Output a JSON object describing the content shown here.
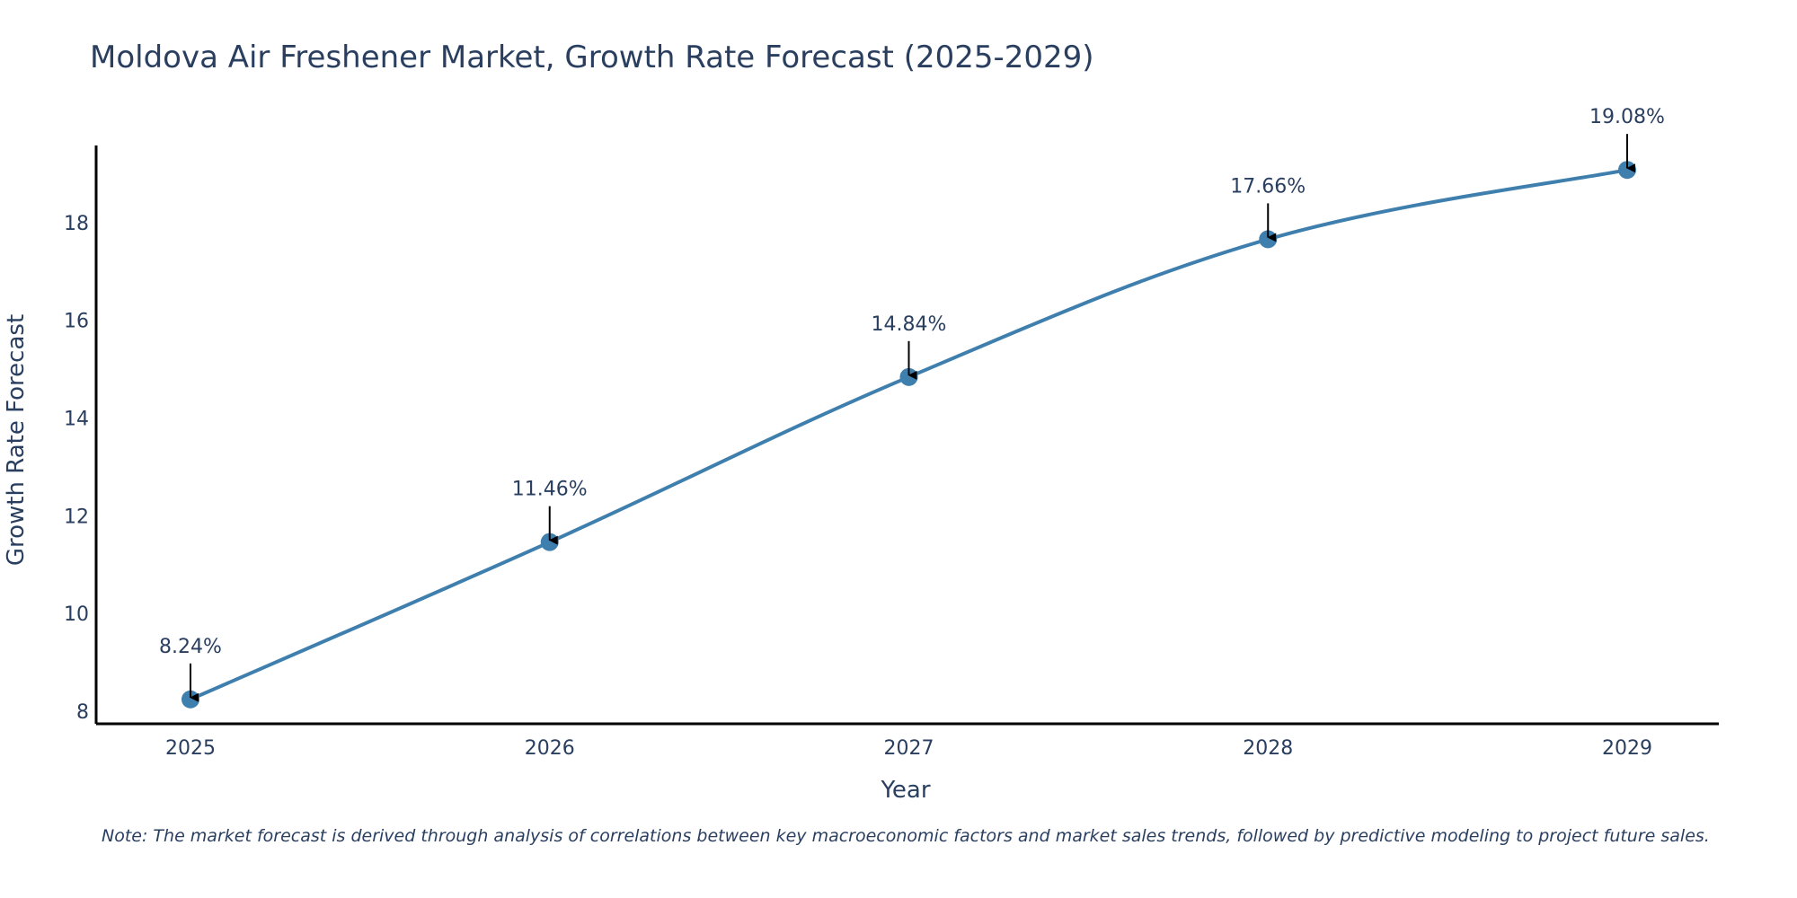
{
  "chart_data": {
    "type": "line",
    "title": "Moldova Air Freshener Market, Growth Rate Forecast (2025-2029)",
    "xlabel": "Year",
    "ylabel": "Growth Rate Forecast",
    "categories": [
      "2025",
      "2026",
      "2027",
      "2028",
      "2029"
    ],
    "values": [
      8.24,
      11.46,
      14.84,
      17.66,
      19.08
    ],
    "data_labels": [
      "8.24%",
      "11.46%",
      "14.84%",
      "17.66%",
      "19.08%"
    ],
    "yticks": [
      8,
      10,
      12,
      14,
      16,
      18
    ],
    "ylim": [
      7.74,
      19.58
    ],
    "line_color": "#3f7fae",
    "marker_color": "#3f7fae",
    "annotation_arrow_color": "#000000",
    "grid": false,
    "note": "Note: The market forecast is derived through analysis of correlations between key macroeconomic factors and market sales trends, followed by predictive modeling to project future sales."
  }
}
